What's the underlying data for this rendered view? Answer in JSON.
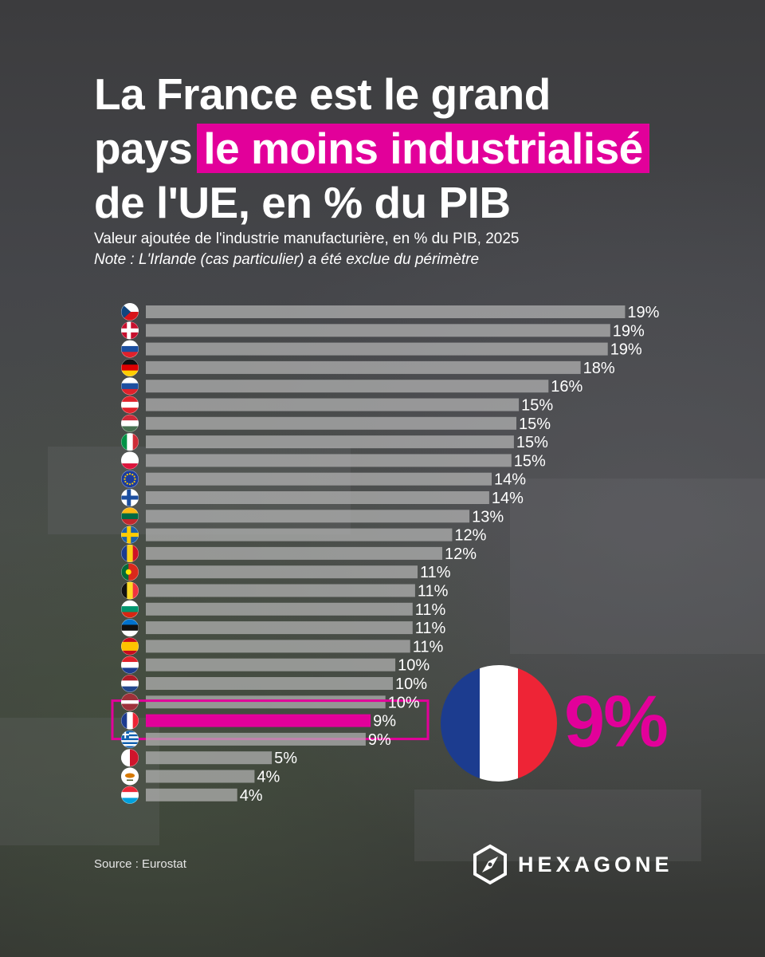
{
  "header": {
    "title_bold": "La France",
    "title_rest1": "est le grand",
    "title_pre2": "pays",
    "title_highlight": "le moins industrialisé",
    "title_line3": "de l'UE, en % du PIB",
    "subtitle": "Valeur ajoutée de l'industrie manufacturière, en % du PIB, 2025",
    "note": "Note : L'Irlande (cas particulier) a été exclue du périmètre"
  },
  "colors": {
    "accent": "#e2009a",
    "bar": "#b4b4b4",
    "highlight_bar": "#e2009a"
  },
  "highlight": {
    "country_flag": "france-flag",
    "value_label": "9%"
  },
  "footer": {
    "source": "Source : Eurostat",
    "brand": "HEXAGONE"
  },
  "chart_data": {
    "type": "bar",
    "orientation": "horizontal",
    "unit": "%",
    "categories": [
      "czechia-flag",
      "denmark-flag",
      "slovenia-flag",
      "germany-flag",
      "slovakia-flag",
      "austria-flag",
      "hungary-flag",
      "italy-flag",
      "poland-flag",
      "eu-flag",
      "finland-flag",
      "lithuania-flag",
      "sweden-flag",
      "romania-flag",
      "portugal-flag",
      "belgium-flag",
      "bulgaria-flag",
      "estonia-flag",
      "spain-flag",
      "croatia-flag",
      "netherlands-flag",
      "latvia-flag",
      "france-flag",
      "greece-flag",
      "malta-flag",
      "cyprus-flag",
      "luxembourg-flag"
    ],
    "values": [
      19.4,
      18.8,
      18.7,
      17.6,
      16.3,
      15.1,
      15.0,
      14.9,
      14.8,
      14.0,
      13.9,
      13.1,
      12.4,
      12.0,
      11.0,
      10.9,
      10.8,
      10.8,
      10.7,
      10.1,
      10.0,
      9.7,
      9.1,
      8.9,
      5.1,
      4.4,
      3.7
    ],
    "labels": [
      "19%",
      "19%",
      "19%",
      "18%",
      "16%",
      "15%",
      "15%",
      "15%",
      "15%",
      "14%",
      "14%",
      "13%",
      "12%",
      "12%",
      "11%",
      "11%",
      "11%",
      "11%",
      "11%",
      "10%",
      "10%",
      "10%",
      "9%",
      "9%",
      "5%",
      "4%",
      "4%"
    ],
    "highlight_index": 22
  }
}
